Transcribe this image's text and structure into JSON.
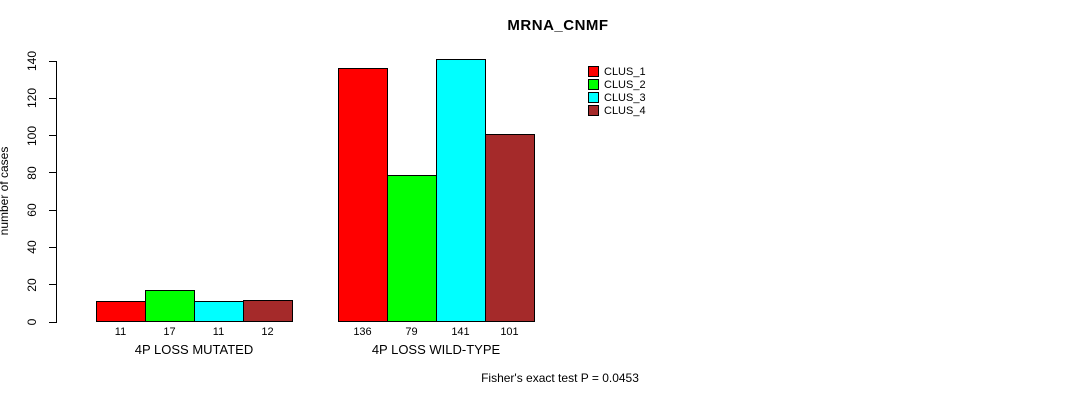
{
  "title": "MRNA_CNMF",
  "ylabel": "number of cases",
  "footer": "Fisher's exact test P = 0.0453",
  "legend": {
    "position": "top-right",
    "items": [
      {
        "label": "CLUS_1",
        "color": "#ff0000"
      },
      {
        "label": "CLUS_2",
        "color": "#00ff00"
      },
      {
        "label": "CLUS_3",
        "color": "#00ffff"
      },
      {
        "label": "CLUS_4",
        "color": "#a52a2a"
      }
    ]
  },
  "chart_data": {
    "type": "bar",
    "title": "MRNA_CNMF",
    "xlabel": "",
    "ylabel": "number of cases",
    "ylim": [
      0,
      140
    ],
    "yticks": [
      0,
      20,
      40,
      60,
      80,
      100,
      120,
      140
    ],
    "grid": false,
    "legend_position": "top-right",
    "series": [
      {
        "name": "CLUS_1",
        "color": "#ff0000",
        "values": [
          11,
          136
        ]
      },
      {
        "name": "CLUS_2",
        "color": "#00ff00",
        "values": [
          17,
          79
        ]
      },
      {
        "name": "CLUS_3",
        "color": "#00ffff",
        "values": [
          11,
          141
        ]
      },
      {
        "name": "CLUS_4",
        "color": "#a52a2a",
        "values": [
          12,
          101
        ]
      }
    ],
    "categories": [
      "4P LOSS MUTATED",
      "4P LOSS WILD-TYPE"
    ],
    "bar_value_labels": [
      [
        11,
        17,
        11,
        12
      ],
      [
        136,
        79,
        141,
        101
      ]
    ],
    "annotation": "Fisher's exact test P = 0.0453"
  }
}
